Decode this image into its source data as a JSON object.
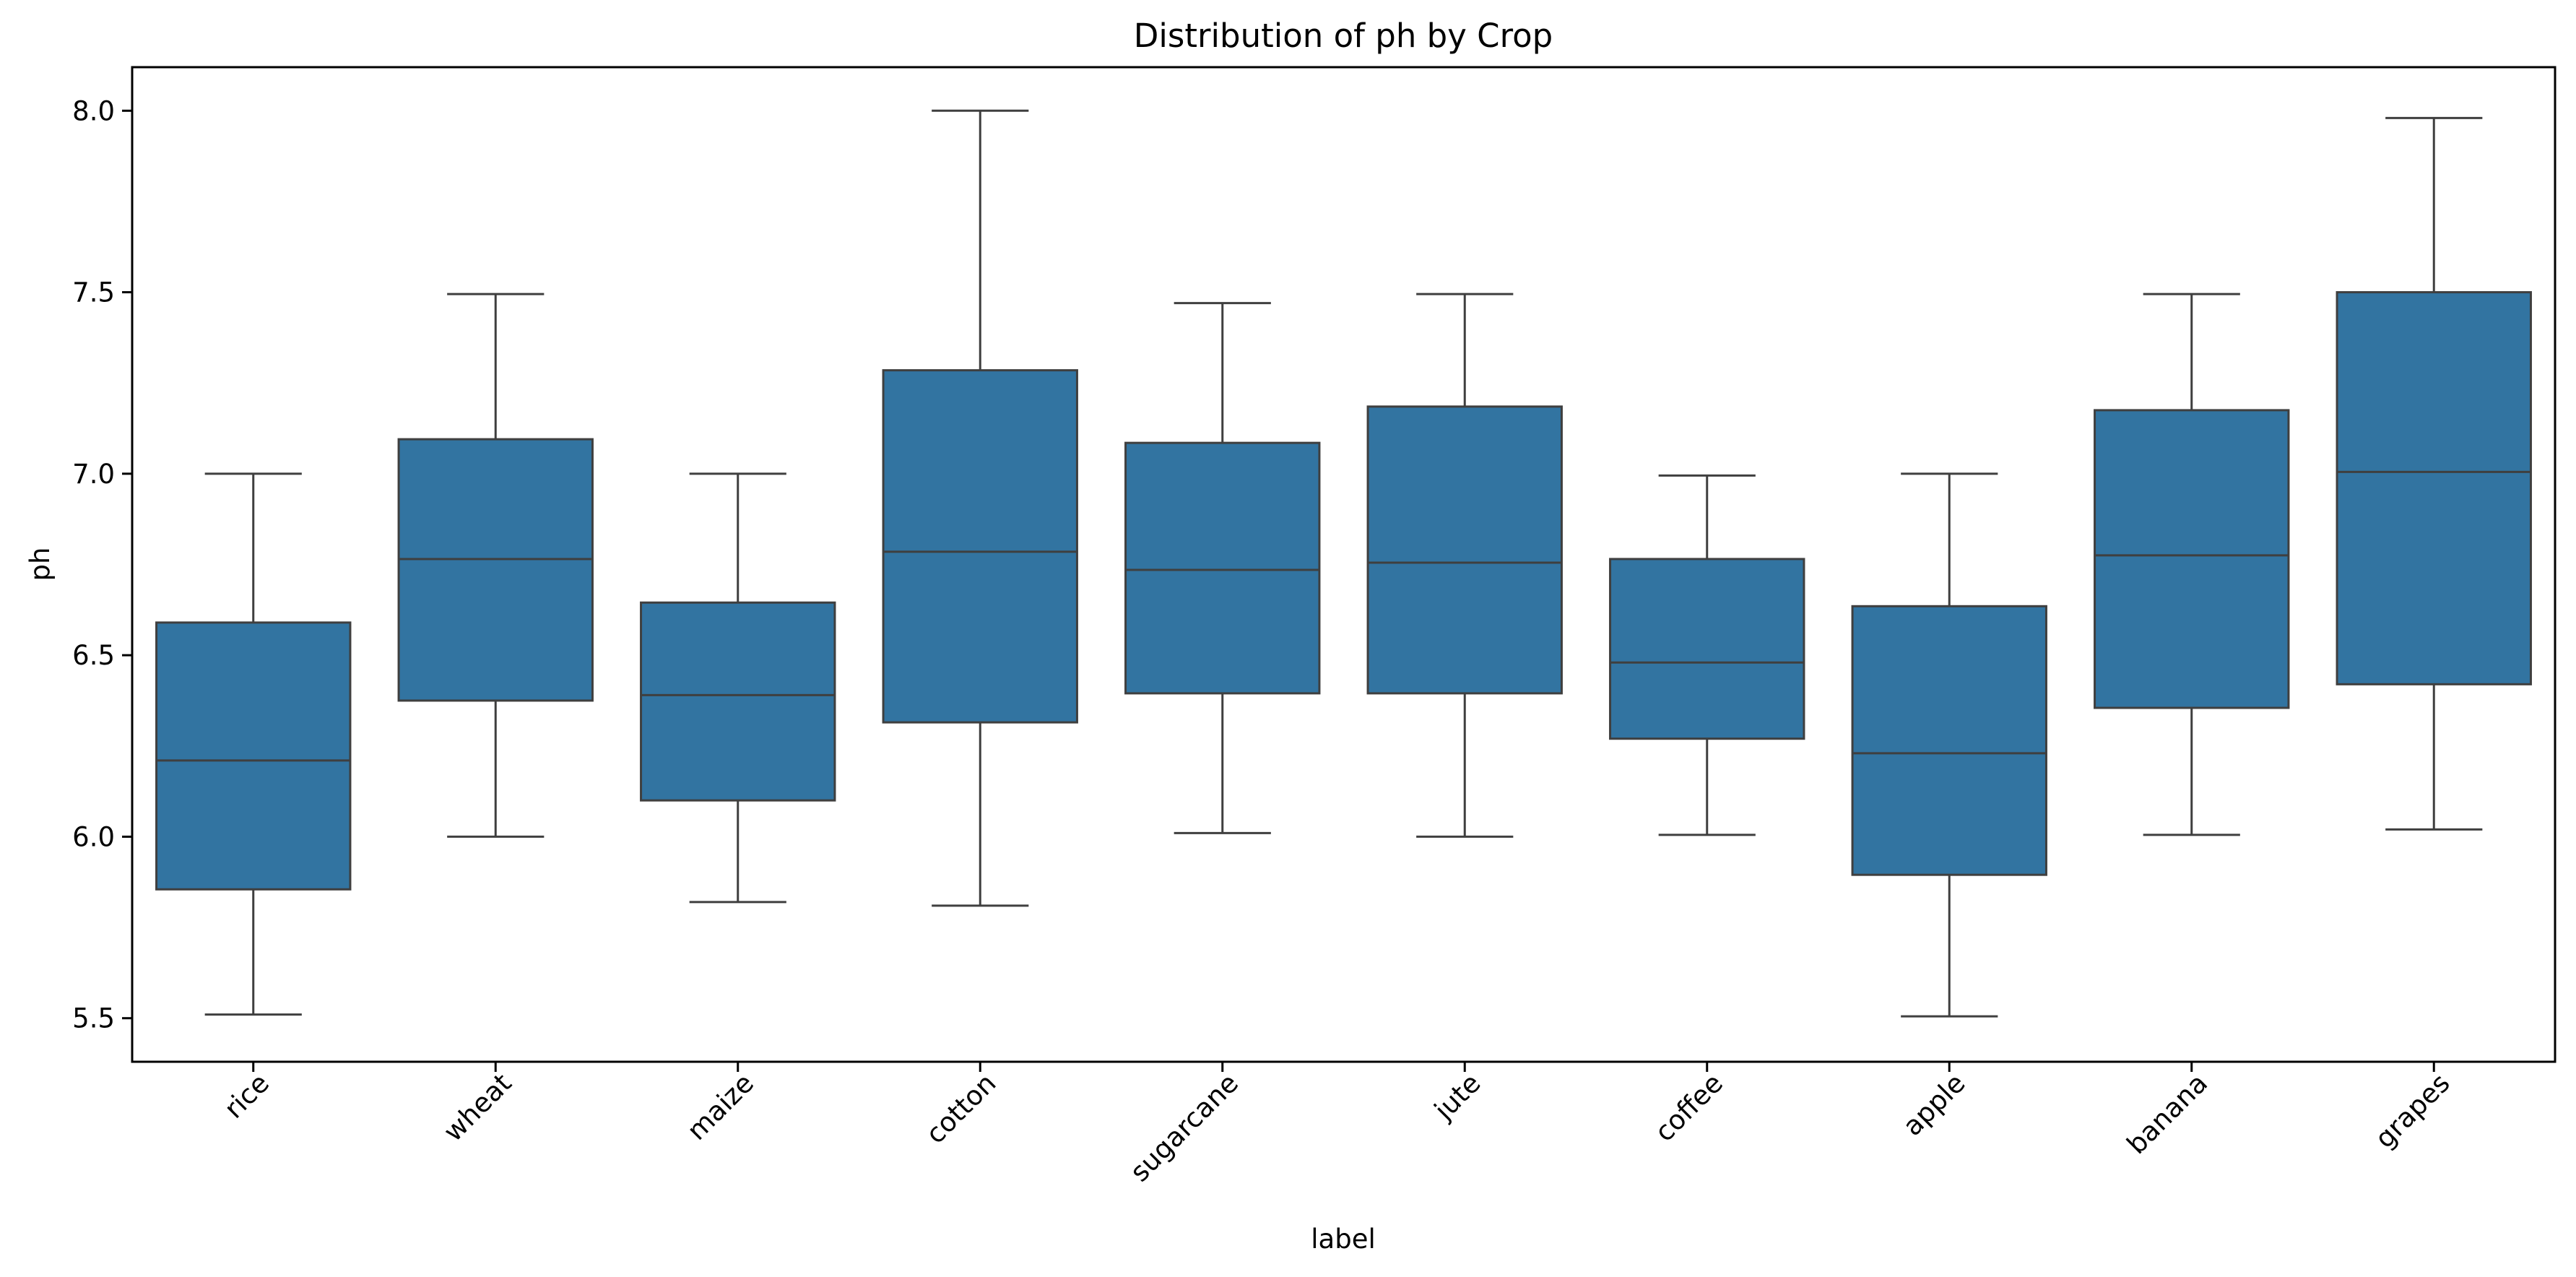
{
  "chart_data": {
    "type": "box",
    "title": "Distribution of ph by Crop",
    "xlabel": "label",
    "ylabel": "ph",
    "ylim": [
      5.38,
      8.12
    ],
    "yticks": [
      "5.5",
      "6.0",
      "6.5",
      "7.0",
      "7.5",
      "8.0"
    ],
    "box_color": "#3274a1",
    "line_color": "#3f3f3f",
    "categories": [
      "rice",
      "wheat",
      "maize",
      "cotton",
      "sugarcane",
      "jute",
      "coffee",
      "apple",
      "banana",
      "grapes"
    ],
    "boxes": [
      {
        "label": "rice",
        "whislo": 5.51,
        "q1": 5.855,
        "med": 6.21,
        "q3": 6.59,
        "whishi": 7.0
      },
      {
        "label": "wheat",
        "whislo": 6.0,
        "q1": 6.375,
        "med": 6.765,
        "q3": 7.095,
        "whishi": 7.495
      },
      {
        "label": "maize",
        "whislo": 5.82,
        "q1": 6.1,
        "med": 6.39,
        "q3": 6.645,
        "whishi": 7.0
      },
      {
        "label": "cotton",
        "whislo": 5.81,
        "q1": 6.315,
        "med": 6.785,
        "q3": 7.285,
        "whishi": 8.0
      },
      {
        "label": "sugarcane",
        "whislo": 6.01,
        "q1": 6.395,
        "med": 6.735,
        "q3": 7.085,
        "whishi": 7.47
      },
      {
        "label": "jute",
        "whislo": 6.0,
        "q1": 6.395,
        "med": 6.755,
        "q3": 7.185,
        "whishi": 7.495
      },
      {
        "label": "coffee",
        "whislo": 6.005,
        "q1": 6.27,
        "med": 6.48,
        "q3": 6.765,
        "whishi": 6.995
      },
      {
        "label": "apple",
        "whislo": 5.505,
        "q1": 5.895,
        "med": 6.23,
        "q3": 6.635,
        "whishi": 7.0
      },
      {
        "label": "banana",
        "whislo": 6.005,
        "q1": 6.355,
        "med": 6.775,
        "q3": 7.175,
        "whishi": 7.495
      },
      {
        "label": "grapes",
        "whislo": 6.02,
        "q1": 6.42,
        "med": 7.005,
        "q3": 7.5,
        "whishi": 7.98
      }
    ]
  }
}
